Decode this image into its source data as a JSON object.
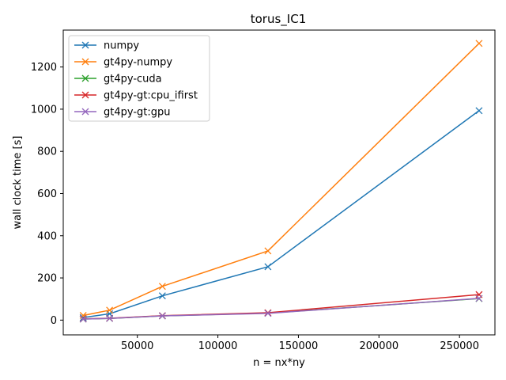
{
  "chart_data": {
    "type": "line",
    "title": "torus_IC1",
    "xlabel": "n = nx*ny",
    "ylabel": "wall clock time [s]",
    "xlim": [
      4000,
      272000
    ],
    "ylim": [
      -70,
      1375
    ],
    "xticks": [
      50000,
      100000,
      150000,
      200000,
      250000
    ],
    "yticks": [
      0,
      200,
      400,
      600,
      800,
      1000,
      1200
    ],
    "grid": false,
    "legend_position": "upper-left",
    "marker": "x",
    "x": [
      16384,
      32768,
      65536,
      131072,
      262144
    ],
    "series": [
      {
        "name": "numpy",
        "color": "#1f77b4",
        "values": [
          12,
          30,
          115,
          253,
          993
        ]
      },
      {
        "name": "gt4py-numpy",
        "color": "#ff7f0e",
        "values": [
          22,
          47,
          160,
          328,
          1312
        ]
      },
      {
        "name": "gt4py-cuda",
        "color": "#2ca02c",
        "values": [
          5,
          8,
          20,
          33,
          102
        ]
      },
      {
        "name": "gt4py-gt:cpu_ifirst",
        "color": "#d62728",
        "values": [
          6,
          9,
          21,
          35,
          121
        ]
      },
      {
        "name": "gt4py-gt:gpu",
        "color": "#9467bd",
        "values": [
          5,
          8,
          20,
          32,
          103
        ]
      }
    ]
  }
}
